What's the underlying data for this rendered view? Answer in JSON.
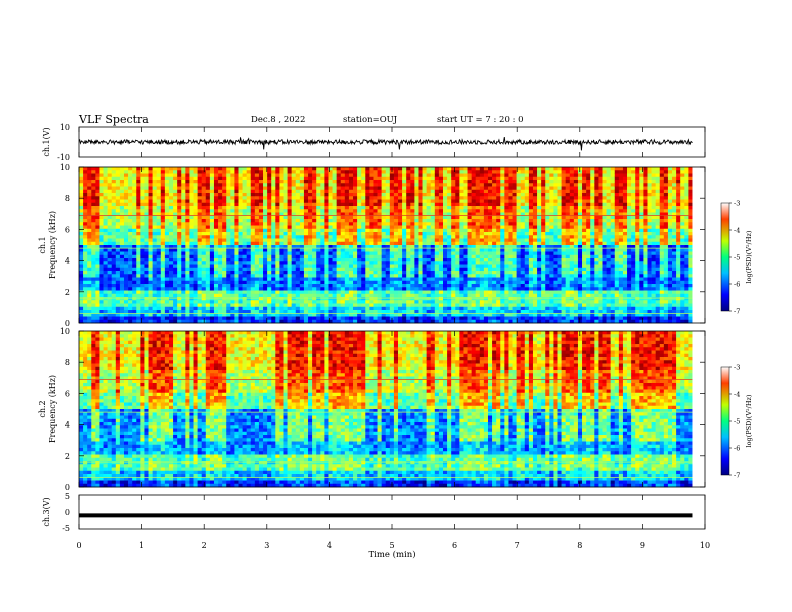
{
  "header": {
    "title": "VLF Spectra",
    "date": "Dec.8 , 2022",
    "station": "station=OUJ",
    "start": "start UT =  7 : 20 : 0"
  },
  "chart_data": [
    {
      "type": "line",
      "id": "ch1_waveform",
      "ylabel": "ch.1(V)",
      "ylim": [
        -10,
        10
      ],
      "yticks": [
        "10",
        "-10"
      ],
      "xlim": [
        0,
        10
      ],
      "description_values": {
        "baseline_v": 0,
        "noise_amplitude_v": 1.5,
        "spike_amplitude_v": 3
      }
    },
    {
      "type": "heatmap",
      "id": "ch1_spectrogram",
      "ylabel": "ch.1",
      "ylabel2": "Frequency (kHz)",
      "ylim": [
        0,
        10
      ],
      "yticks": [
        "0",
        "2",
        "4",
        "6",
        "8",
        "10"
      ],
      "xlim": [
        0,
        10
      ],
      "data_end_min": 9.8,
      "colorbar": {
        "label": "log(PSD)(V²/Hz)",
        "range": [
          -7,
          -3
        ],
        "ticks": [
          "-3",
          "-4",
          "-5",
          "-6",
          "-7"
        ]
      }
    },
    {
      "type": "heatmap",
      "id": "ch2_spectrogram",
      "ylabel": "ch.2",
      "ylabel2": "Frequency (kHz)",
      "ylim": [
        0,
        10
      ],
      "yticks": [
        "0",
        "2",
        "4",
        "6",
        "8",
        "10"
      ],
      "xlim": [
        0,
        10
      ],
      "data_end_min": 9.8,
      "colorbar": {
        "label": "log(PSD)(V²/Hz)",
        "range": [
          -7,
          -3
        ],
        "ticks": [
          "-3",
          "-4",
          "-5",
          "-6",
          "-7"
        ]
      }
    },
    {
      "type": "line",
      "id": "ch3_waveform",
      "ylabel": "ch.3(V)",
      "ylim": [
        -5,
        5
      ],
      "yticks": [
        "5",
        "0",
        "-5"
      ],
      "xlim": [
        0,
        10
      ],
      "values_v": -1,
      "xlabel": "Time (min)",
      "xticks": [
        "0",
        "1",
        "2",
        "3",
        "4",
        "5",
        "6",
        "7",
        "8",
        "9",
        "10"
      ]
    }
  ]
}
